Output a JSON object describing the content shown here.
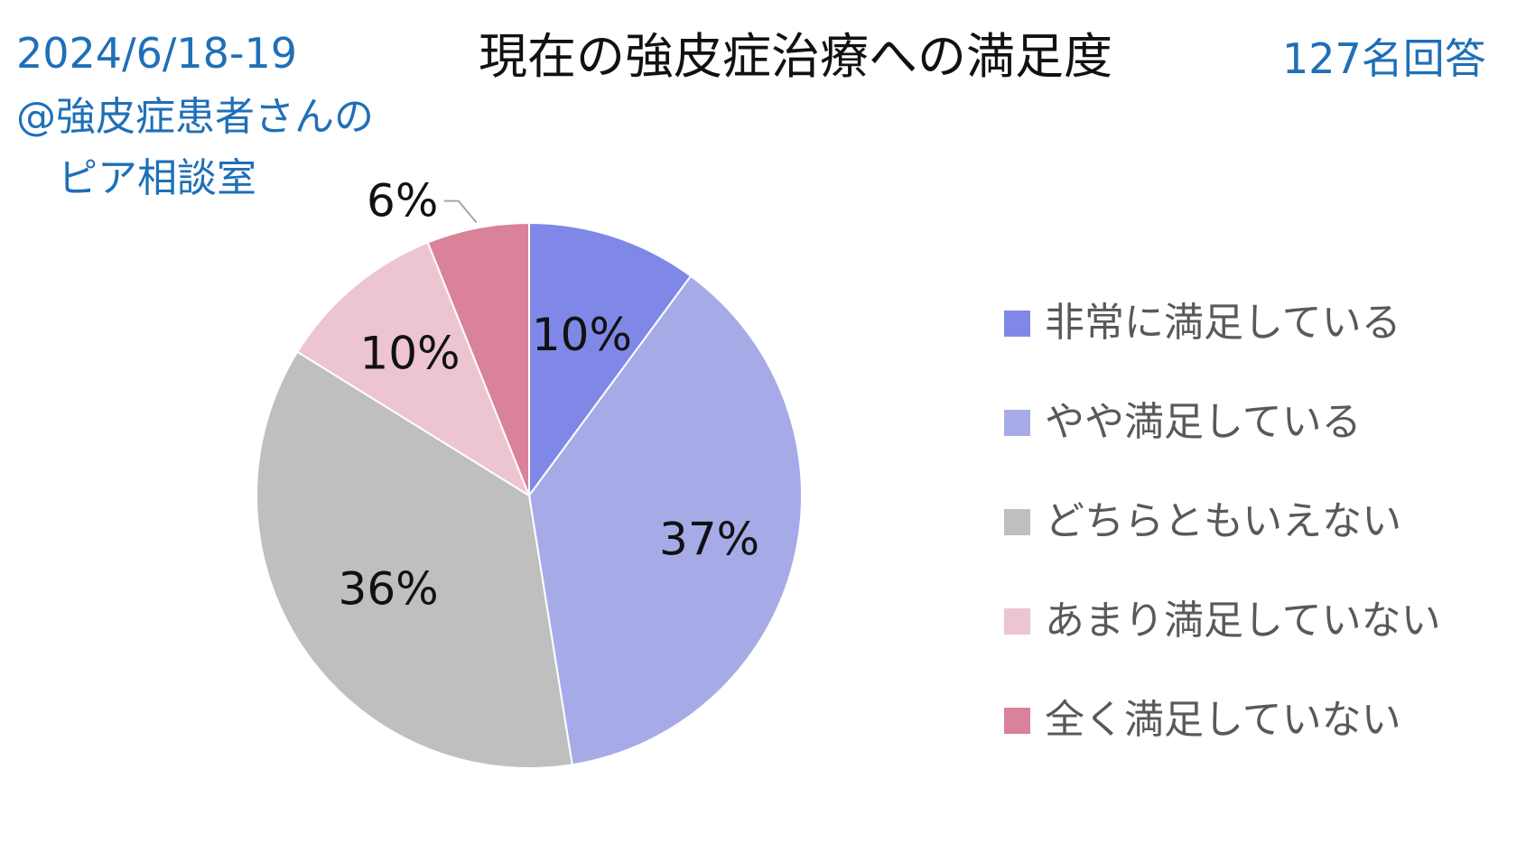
{
  "header": {
    "date": "2024/6/18-19",
    "source_line1": "@強皮症患者さんの",
    "source_line2": "ピア相談室",
    "respondents": "127名回答"
  },
  "chart_data": {
    "type": "pie",
    "title": "現在の強皮症治療への満足度",
    "legend_position": "right",
    "categories": [
      "非常に満足している",
      "やや満足している",
      "どちらともいえない",
      "あまり満足していない",
      "全く満足していない"
    ],
    "values": [
      10,
      37,
      36,
      10,
      6
    ],
    "labels": [
      "10%",
      "37%",
      "36%",
      "10%",
      "6%"
    ],
    "colors": [
      "#7f88e6",
      "#a6abe8",
      "#bfbfbf",
      "#ecc5d0",
      "#d98299"
    ]
  }
}
